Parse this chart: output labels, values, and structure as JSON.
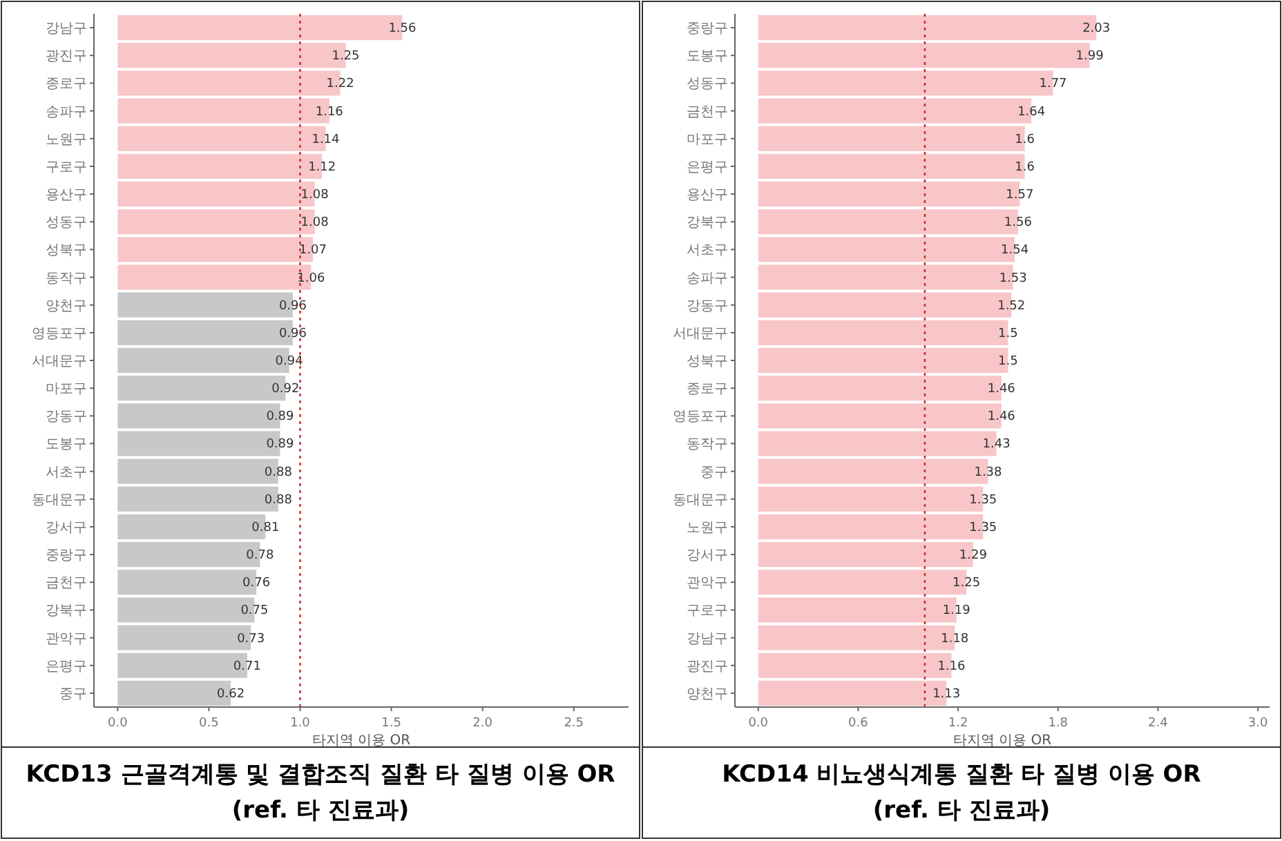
{
  "chart_data": [
    {
      "type": "bar",
      "orientation": "horizontal",
      "title": "KCD13 근골격계통 및 결합조직 질환 타 질병 이용 OR\n(ref. 타 진료과)",
      "xlabel": "타지역 이용 OR",
      "categories": [
        "강남구",
        "광진구",
        "종로구",
        "송파구",
        "노원구",
        "구로구",
        "용산구",
        "성동구",
        "성북구",
        "동작구",
        "양천구",
        "영등포구",
        "서대문구",
        "마포구",
        "강동구",
        "도봉구",
        "서초구",
        "동대문구",
        "강서구",
        "중랑구",
        "금천구",
        "강북구",
        "관악구",
        "은평구",
        "중구"
      ],
      "values": [
        1.56,
        1.25,
        1.22,
        1.16,
        1.14,
        1.12,
        1.08,
        1.08,
        1.07,
        1.06,
        0.96,
        0.96,
        0.94,
        0.92,
        0.89,
        0.89,
        0.88,
        0.88,
        0.81,
        0.78,
        0.76,
        0.75,
        0.73,
        0.71,
        0.62
      ],
      "colors": [
        "#f8c6c8",
        "#f8c6c8",
        "#f8c6c8",
        "#f8c6c8",
        "#f8c6c8",
        "#f8c6c8",
        "#f8c6c8",
        "#f8c6c8",
        "#f8c6c8",
        "#f8c6c8",
        "#c8c8c8",
        "#c8c8c8",
        "#c8c8c8",
        "#c8c8c8",
        "#c8c8c8",
        "#c8c8c8",
        "#c8c8c8",
        "#c8c8c8",
        "#c8c8c8",
        "#c8c8c8",
        "#c8c8c8",
        "#c8c8c8",
        "#c8c8c8",
        "#c8c8c8",
        "#c8c8c8"
      ],
      "data_labels": true,
      "xlim": [
        -0.13,
        2.8
      ],
      "xticks": [
        {
          "value": 0,
          "label": "0.0"
        },
        {
          "value": 0.5,
          "label": "0.5"
        },
        {
          "value": 1,
          "label": "1.0"
        },
        {
          "value": 1.5,
          "label": "1.5"
        },
        {
          "value": 2,
          "label": "2.0"
        },
        {
          "value": 2.5,
          "label": "2.5"
        }
      ],
      "ref_lines": [
        {
          "axis": "x",
          "value": 1,
          "color": "#cc2222",
          "line_style": "dotted"
        }
      ],
      "grid": false
    },
    {
      "type": "bar",
      "orientation": "horizontal",
      "title": "KCD14 비뇨생식계통 질환 타 질병 이용 OR\n(ref. 타 진료과)",
      "xlabel": "타지역 이용 OR",
      "categories": [
        "중랑구",
        "도봉구",
        "성동구",
        "금천구",
        "마포구",
        "은평구",
        "용산구",
        "강북구",
        "서초구",
        "송파구",
        "강동구",
        "서대문구",
        "성북구",
        "종로구",
        "영등포구",
        "동작구",
        "중구",
        "동대문구",
        "노원구",
        "강서구",
        "관악구",
        "구로구",
        "강남구",
        "광진구",
        "양천구"
      ],
      "values": [
        2.03,
        1.99,
        1.77,
        1.64,
        1.6,
        1.6,
        1.57,
        1.56,
        1.54,
        1.53,
        1.52,
        1.5,
        1.5,
        1.46,
        1.46,
        1.43,
        1.38,
        1.35,
        1.35,
        1.29,
        1.25,
        1.19,
        1.18,
        1.16,
        1.13
      ],
      "colors": [
        "#f8c6c8",
        "#f8c6c8",
        "#f8c6c8",
        "#f8c6c8",
        "#f8c6c8",
        "#f8c6c8",
        "#f8c6c8",
        "#f8c6c8",
        "#f8c6c8",
        "#f8c6c8",
        "#f8c6c8",
        "#f8c6c8",
        "#f8c6c8",
        "#f8c6c8",
        "#f8c6c8",
        "#f8c6c8",
        "#f8c6c8",
        "#f8c6c8",
        "#f8c6c8",
        "#f8c6c8",
        "#f8c6c8",
        "#f8c6c8",
        "#f8c6c8",
        "#f8c6c8",
        "#f8c6c8"
      ],
      "data_labels": true,
      "xlim": [
        -0.14,
        3.07
      ],
      "xticks": [
        {
          "value": 0,
          "label": "0.0"
        },
        {
          "value": 0.6,
          "label": "0.6"
        },
        {
          "value": 1.2,
          "label": "1.2"
        },
        {
          "value": 1.8,
          "label": "1.8"
        },
        {
          "value": 2.4,
          "label": "2.4"
        },
        {
          "value": 3,
          "label": "3.0"
        }
      ],
      "ref_lines": [
        {
          "axis": "x",
          "value": 1,
          "color": "#cc2222",
          "line_style": "dotted"
        }
      ],
      "grid": false
    }
  ]
}
